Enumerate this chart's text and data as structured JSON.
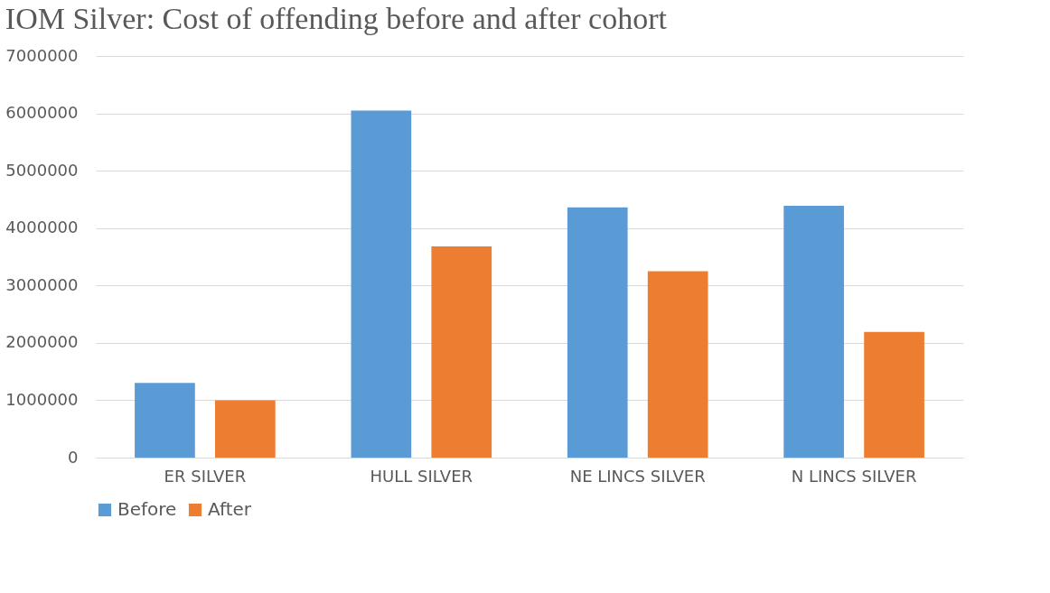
{
  "chart_data": {
    "type": "bar",
    "title": "IOM Silver: Cost of offending before and after cohort",
    "categories": [
      "ER SILVER",
      "HULL SILVER",
      "NE LINCS SILVER",
      "N LINCS SILVER"
    ],
    "series": [
      {
        "name": "Before",
        "color": "#5b9bd5",
        "values": [
          1300000,
          6050000,
          4360000,
          4390000
        ]
      },
      {
        "name": "After",
        "color": "#ed7d31",
        "values": [
          1000000,
          3680000,
          3250000,
          2190000
        ]
      }
    ],
    "ylim": [
      0,
      7000000
    ],
    "yticks": [
      0,
      1000000,
      2000000,
      3000000,
      4000000,
      5000000,
      6000000,
      7000000
    ],
    "grid": "y",
    "legend": "bottom"
  }
}
